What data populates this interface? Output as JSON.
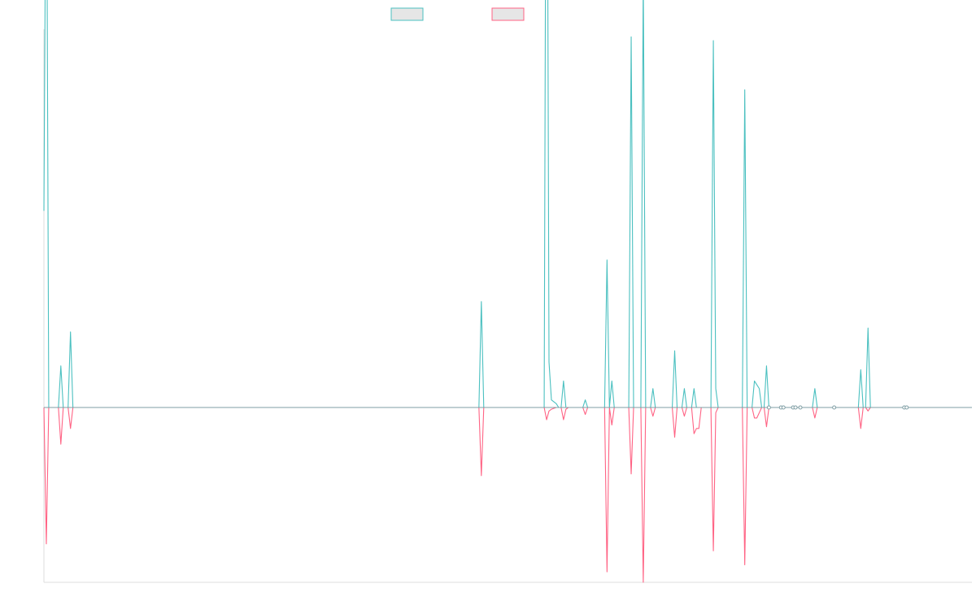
{
  "chart_data": {
    "type": "line",
    "title": "",
    "xlabel": "",
    "ylabel": "",
    "grid": false,
    "legend_position": "top-center",
    "x_count": 385,
    "ylim": [
      -100,
      100
    ],
    "colors": {
      "series_positive": "#4bc0c0",
      "series_negative": "#ff6384",
      "axis": "#dddddd",
      "swatch_fill": "#e6e6e6",
      "baseline": "#7f9ea4"
    },
    "series": [
      {
        "name": "",
        "role": "positive",
        "baseline": 0,
        "points": [
          [
            0,
            52
          ],
          [
            1,
            168
          ],
          [
            2,
            0
          ],
          [
            6,
            0
          ],
          [
            7,
            11
          ],
          [
            8,
            0
          ],
          [
            10,
            0
          ],
          [
            11,
            20
          ],
          [
            12,
            0
          ],
          [
            180,
            0
          ],
          [
            181,
            28
          ],
          [
            182,
            0
          ],
          [
            207,
            0
          ],
          [
            208,
            215
          ],
          [
            209,
            12
          ],
          [
            210,
            2
          ],
          [
            212,
            1
          ],
          [
            213,
            0
          ],
          [
            214,
            0
          ],
          [
            215,
            7
          ],
          [
            216,
            0
          ],
          [
            217,
            0
          ],
          [
            223,
            0
          ],
          [
            224,
            2
          ],
          [
            225,
            0
          ],
          [
            232,
            0
          ],
          [
            233,
            39
          ],
          [
            234,
            0
          ],
          [
            235,
            7
          ],
          [
            236,
            0
          ],
          [
            242,
            0
          ],
          [
            243,
            98
          ],
          [
            244,
            0
          ],
          [
            247,
            0
          ],
          [
            248,
            114
          ],
          [
            249,
            0
          ],
          [
            251,
            0
          ],
          [
            252,
            5
          ],
          [
            253,
            0
          ],
          [
            260,
            0
          ],
          [
            261,
            15
          ],
          [
            262,
            0
          ],
          [
            264,
            0
          ],
          [
            265,
            5
          ],
          [
            266,
            0
          ],
          [
            268,
            0
          ],
          [
            269,
            5
          ],
          [
            270,
            0
          ],
          [
            276,
            0
          ],
          [
            277,
            97
          ],
          [
            278,
            5
          ],
          [
            279,
            0
          ],
          [
            289,
            0
          ],
          [
            290,
            84
          ],
          [
            291,
            0
          ],
          [
            293,
            0
          ],
          [
            294,
            7
          ],
          [
            295,
            6
          ],
          [
            296,
            5
          ],
          [
            297,
            0
          ],
          [
            298,
            0
          ],
          [
            299,
            11
          ],
          [
            300,
            0
          ],
          [
            318,
            0
          ],
          [
            319,
            5
          ],
          [
            320,
            0
          ],
          [
            327,
            0
          ],
          [
            337,
            0
          ],
          [
            338,
            10
          ],
          [
            339,
            0
          ],
          [
            340,
            0
          ],
          [
            341,
            21
          ],
          [
            342,
            0
          ],
          [
            384,
            0
          ]
        ]
      },
      {
        "name": "",
        "role": "negative",
        "baseline": 0,
        "points": [
          [
            0,
            0
          ],
          [
            1,
            -78
          ],
          [
            2,
            0
          ],
          [
            6,
            0
          ],
          [
            7,
            -21
          ],
          [
            8,
            0
          ],
          [
            10,
            0
          ],
          [
            11,
            -12
          ],
          [
            12,
            0
          ],
          [
            180,
            0
          ],
          [
            181,
            -39
          ],
          [
            182,
            0
          ],
          [
            207,
            0
          ],
          [
            208,
            -7
          ],
          [
            209,
            -2
          ],
          [
            210,
            -1
          ],
          [
            212,
            0
          ],
          [
            214,
            0
          ],
          [
            215,
            -7
          ],
          [
            216,
            -1
          ],
          [
            217,
            0
          ],
          [
            223,
            0
          ],
          [
            224,
            -4
          ],
          [
            225,
            0
          ],
          [
            232,
            0
          ],
          [
            233,
            -94
          ],
          [
            234,
            0
          ],
          [
            235,
            -10
          ],
          [
            236,
            0
          ],
          [
            242,
            0
          ],
          [
            243,
            -38
          ],
          [
            244,
            0
          ],
          [
            247,
            0
          ],
          [
            248,
            -100
          ],
          [
            249,
            0
          ],
          [
            251,
            0
          ],
          [
            252,
            -5
          ],
          [
            253,
            0
          ],
          [
            260,
            0
          ],
          [
            261,
            -17
          ],
          [
            262,
            0
          ],
          [
            264,
            0
          ],
          [
            265,
            -5
          ],
          [
            266,
            0
          ],
          [
            268,
            0
          ],
          [
            269,
            -15
          ],
          [
            270,
            -12
          ],
          [
            271,
            -12
          ],
          [
            272,
            0
          ],
          [
            276,
            0
          ],
          [
            277,
            -82
          ],
          [
            278,
            -3
          ],
          [
            279,
            0
          ],
          [
            289,
            0
          ],
          [
            290,
            -90
          ],
          [
            291,
            0
          ],
          [
            293,
            0
          ],
          [
            294,
            -6
          ],
          [
            295,
            -6
          ],
          [
            296,
            -3
          ],
          [
            297,
            0
          ],
          [
            298,
            0
          ],
          [
            299,
            -11
          ],
          [
            300,
            0
          ],
          [
            318,
            0
          ],
          [
            319,
            -6
          ],
          [
            320,
            0
          ],
          [
            337,
            0
          ],
          [
            338,
            -12
          ],
          [
            339,
            0
          ],
          [
            340,
            0
          ],
          [
            341,
            -2
          ],
          [
            342,
            0
          ],
          [
            384,
            0
          ]
        ]
      }
    ],
    "markers": [
      300,
      305,
      306,
      310,
      311,
      313,
      327,
      356,
      357
    ]
  }
}
